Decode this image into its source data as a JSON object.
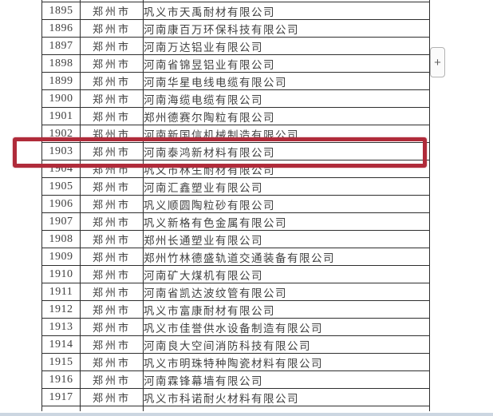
{
  "table": {
    "columns": [
      "index",
      "city",
      "company"
    ],
    "highlighted_index": "1903",
    "rows": [
      {
        "index": "1895",
        "city": "郑州市",
        "company": "巩义市天禹耐材有限公司"
      },
      {
        "index": "1896",
        "city": "郑州市",
        "company": "河南康百万环保科技有限公司"
      },
      {
        "index": "1897",
        "city": "郑州市",
        "company": "河南万达铝业有限公司"
      },
      {
        "index": "1898",
        "city": "郑州市",
        "company": "河南省锦昱铝业有限公司"
      },
      {
        "index": "1899",
        "city": "郑州市",
        "company": "河南华星电线电缆有限公司"
      },
      {
        "index": "1900",
        "city": "郑州市",
        "company": "河南海缆电缆有限公司"
      },
      {
        "index": "1901",
        "city": "郑州市",
        "company": "郑州德赛尔陶粒有限公司"
      },
      {
        "index": "1902",
        "city": "郑州市",
        "company": "河南新国信机械制造有限公司"
      },
      {
        "index": "1903",
        "city": "郑州市",
        "company": "河南泰鸿新材料有限公司"
      },
      {
        "index": "1904",
        "city": "郑州市",
        "company": "巩义市林生耐材有限公司"
      },
      {
        "index": "1905",
        "city": "郑州市",
        "company": "河南汇鑫塑业有限公司"
      },
      {
        "index": "1906",
        "city": "郑州市",
        "company": "巩义顺圆陶粒砂有限公司"
      },
      {
        "index": "1907",
        "city": "郑州市",
        "company": "巩义新格有色金属有限公司"
      },
      {
        "index": "1908",
        "city": "郑州市",
        "company": "郑州长通塑业有限公司"
      },
      {
        "index": "1909",
        "city": "郑州市",
        "company": "郑州竹林德盛轨道交通装备有限公司"
      },
      {
        "index": "1910",
        "city": "郑州市",
        "company": "河南矿大煤机有限公司"
      },
      {
        "index": "1911",
        "city": "郑州市",
        "company": "河南省凯达波纹管有限公司"
      },
      {
        "index": "1912",
        "city": "郑州市",
        "company": "巩义市富康耐材有限公司"
      },
      {
        "index": "1913",
        "city": "郑州市",
        "company": "巩义市佳誉供水设备制造有限公司"
      },
      {
        "index": "1914",
        "city": "郑州市",
        "company": "河南良大空间消防科技有限公司"
      },
      {
        "index": "1915",
        "city": "郑州市",
        "company": "巩义市明珠特种陶瓷材料有限公司"
      },
      {
        "index": "1916",
        "city": "郑州市",
        "company": "河南霖锋幕墙有限公司"
      },
      {
        "index": "1917",
        "city": "郑州市",
        "company": "巩义市科诺耐火材料有限公司"
      }
    ]
  },
  "highlight_box": {
    "color": "#b02b3a"
  },
  "expand_button": {
    "label": "+"
  },
  "bottom_strip": {
    "color": "#ccd6e1"
  }
}
